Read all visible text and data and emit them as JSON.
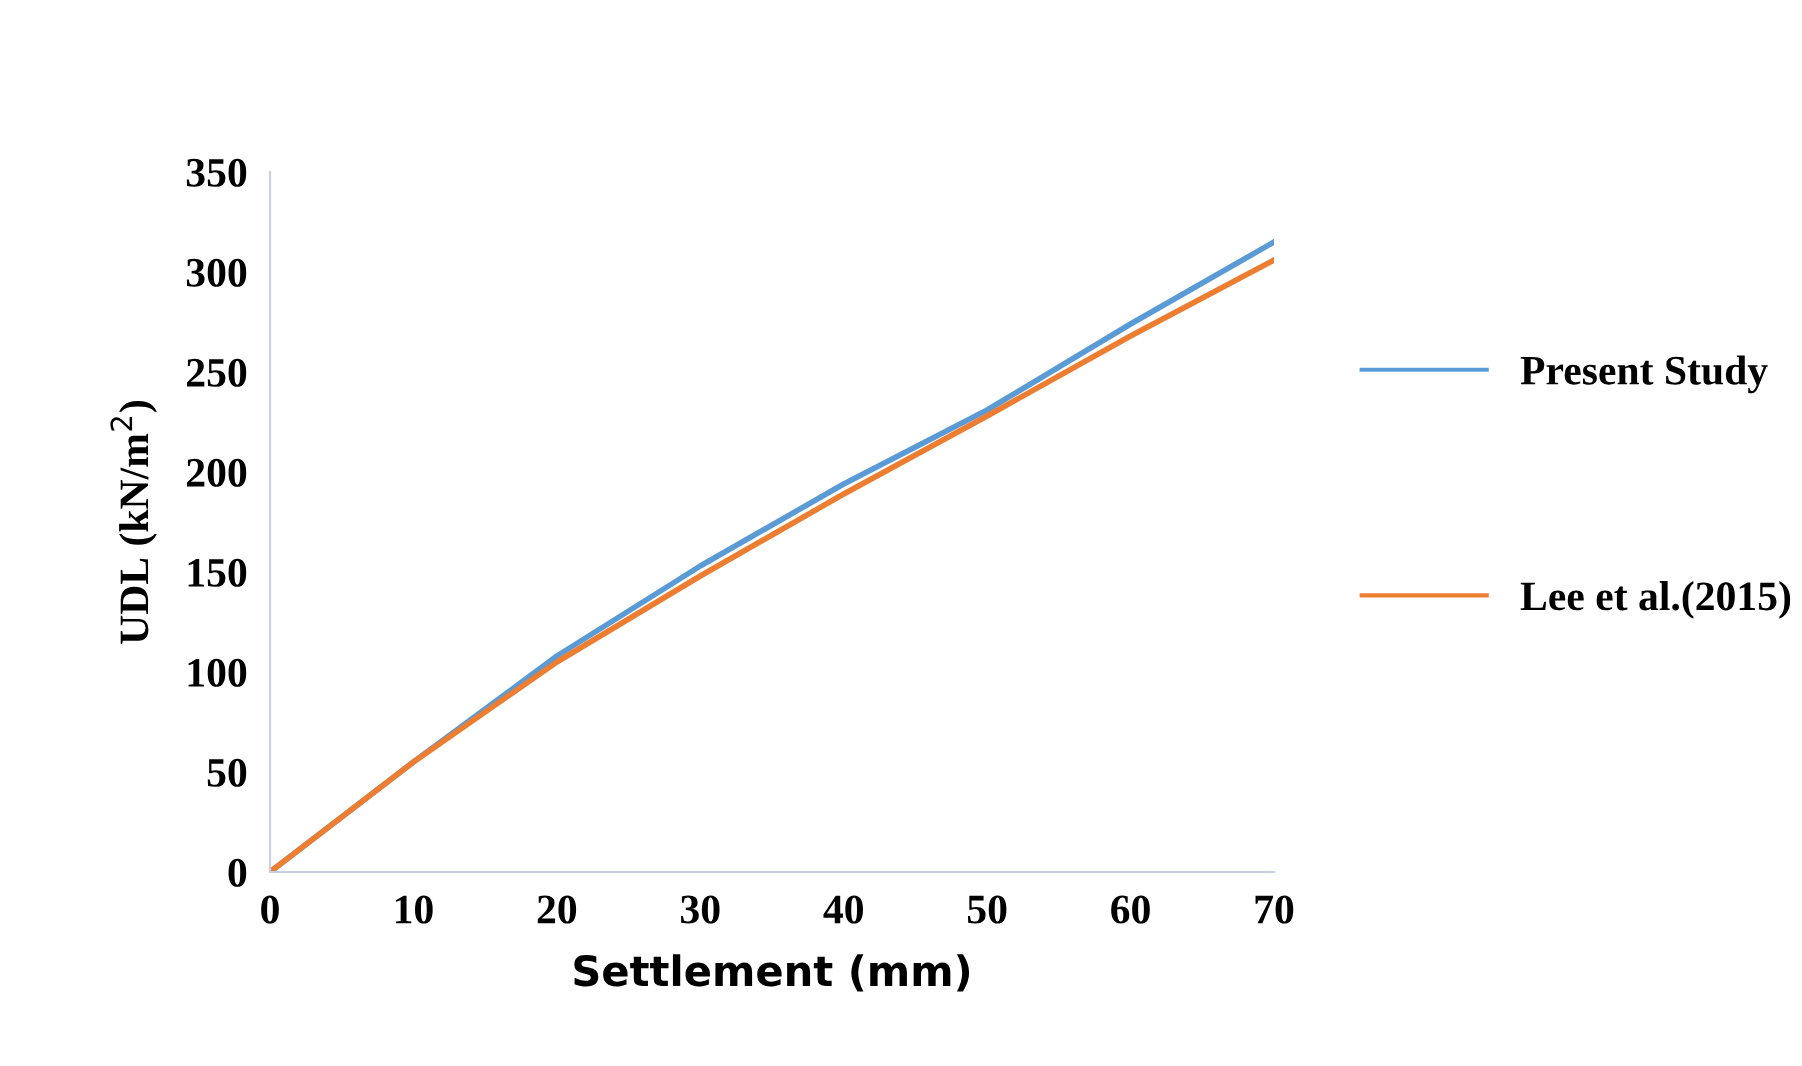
{
  "chart_data": {
    "type": "line",
    "xlabel": "Settlement (mm)",
    "ylabel": "UDL (kN/m$^{2}$)",
    "x": [
      0,
      10,
      20,
      30,
      40,
      50,
      60,
      70
    ],
    "series": [
      {
        "name": "Present Study",
        "color": "#5b9bd5",
        "values": [
          0,
          55,
          108,
          153,
          194,
          231,
          274,
          315
        ]
      },
      {
        "name": "Lee et al.(2015)",
        "color": "#ed7d31",
        "values": [
          0,
          55,
          105,
          148,
          189,
          228,
          268,
          306
        ]
      }
    ],
    "xlim": [
      0,
      70
    ],
    "xticks": [
      0,
      10,
      20,
      30,
      40,
      50,
      60,
      70
    ],
    "ylim": [
      0,
      350
    ],
    "yticks": [
      0,
      50,
      100,
      150,
      200,
      250,
      300,
      350
    ],
    "grid": false,
    "legend": "right",
    "marker": "none",
    "line_style": "solid"
  }
}
